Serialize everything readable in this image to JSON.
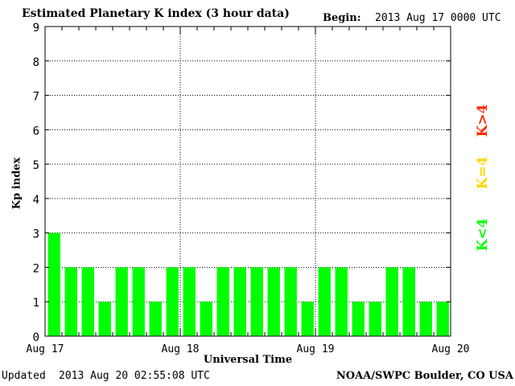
{
  "header": {
    "title": "Estimated Planetary K index (3 hour data)",
    "begin_label": "Begin:",
    "begin_value": "2013 Aug 17 0000 UTC"
  },
  "footer": {
    "updated_label": "Updated",
    "updated_value": "2013 Aug 20 02:55:08 UTC",
    "credit": "NOAA/SWPC Boulder, CO USA"
  },
  "legend": {
    "items": [
      {
        "label": "K<4",
        "color": "#00ff00"
      },
      {
        "label": "K=4",
        "color": "#ffd700"
      },
      {
        "label": "K>4",
        "color": "#ff2a00"
      }
    ]
  },
  "chart_data": {
    "type": "bar",
    "title": "Estimated Planetary K index (3 hour data)",
    "xlabel": "Universal Time",
    "ylabel": "Kp index",
    "ylim": [
      0,
      9
    ],
    "yticks": [
      0,
      1,
      2,
      3,
      4,
      5,
      6,
      7,
      8,
      9
    ],
    "x_tick_labels": [
      "Aug 17",
      "Aug 18",
      "Aug 19",
      "Aug 20"
    ],
    "bins_per_day": 8,
    "grid": true,
    "bar_color": "#00ff00",
    "values": [
      3,
      2,
      2,
      1,
      2,
      2,
      1,
      2,
      2,
      1,
      2,
      2,
      2,
      2,
      2,
      1,
      2,
      2,
      1,
      1,
      2,
      2,
      1,
      1
    ]
  }
}
